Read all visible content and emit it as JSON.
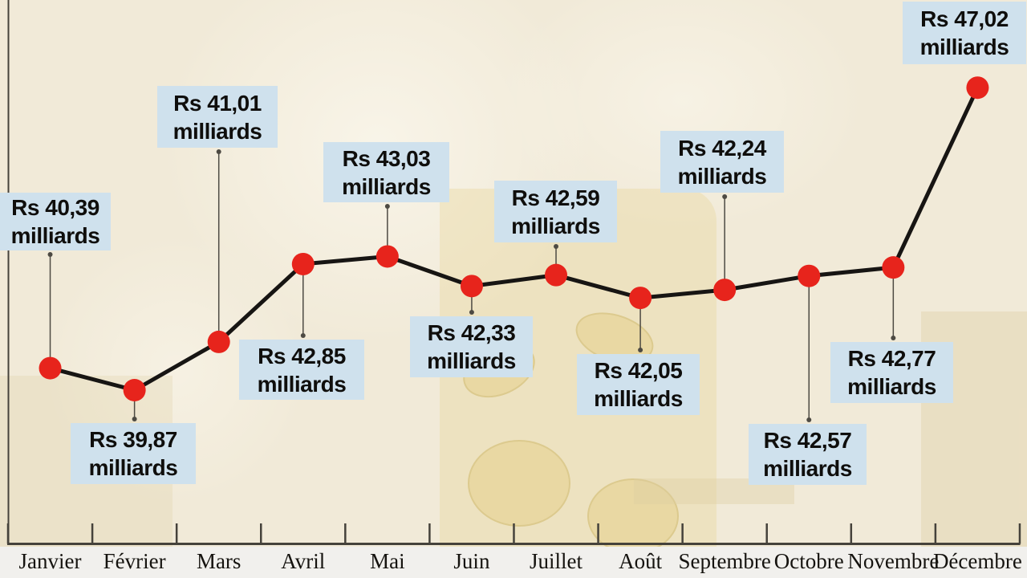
{
  "page": {
    "background_color": "#f1ead8",
    "footer_strip_color": "#f1f0ed"
  },
  "chart_data": {
    "type": "line",
    "categories": [
      "Janvier",
      "Février",
      "Mars",
      "Avril",
      "Mai",
      "Juin",
      "Juillet",
      "Août",
      "Septembre",
      "Octobre",
      "Novembre",
      "Décembre"
    ],
    "values": [
      40.39,
      39.87,
      41.01,
      42.85,
      43.03,
      42.33,
      42.59,
      42.05,
      42.24,
      42.57,
      42.77,
      47.02
    ],
    "value_labels": [
      "Rs 40,39",
      "Rs 39,87",
      "Rs 41,01",
      "Rs 42,85",
      "Rs 43,03",
      "Rs 42,33",
      "Rs 42,59",
      "Rs 42,05",
      "Rs 42,24",
      "Rs 42,57",
      "Rs 42,77",
      "Rs 47,02"
    ],
    "value_label_suffix": "milliards",
    "currency": "Rs",
    "unit": "milliards",
    "legend_position": "none",
    "grid": false,
    "y_axis_tick_labels": "none",
    "x_axis_position": "bottom",
    "colors": {
      "point": "#e7241c",
      "line": "#171513",
      "label_box": "#cfe1ed",
      "label_text": "#0f0e0c",
      "axis": "#45423b",
      "leader_line": "#4d4a43",
      "month_text": "#15130f"
    }
  }
}
